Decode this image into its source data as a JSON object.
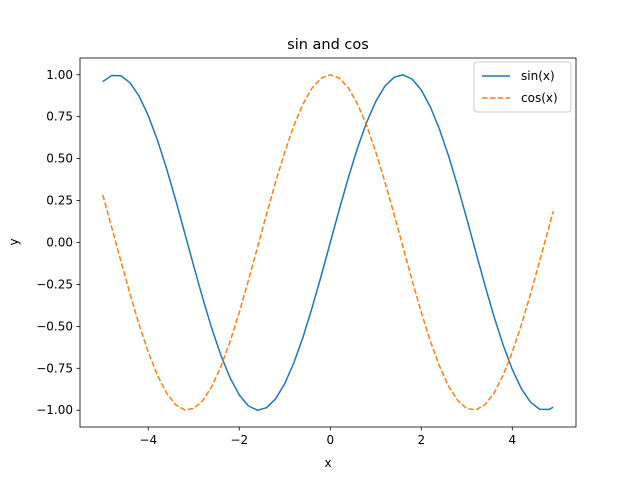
{
  "chart_data": {
    "type": "line",
    "title": "sin and cos",
    "xlabel": "x",
    "ylabel": "y",
    "xlim": [
      -5.5,
      5.4
    ],
    "ylim": [
      -1.1,
      1.1
    ],
    "x_ticks": [
      -4,
      -2,
      0,
      2,
      4
    ],
    "x_tick_labels": [
      "−4",
      "−2",
      "0",
      "2",
      "4"
    ],
    "y_ticks": [
      -1.0,
      -0.75,
      -0.5,
      -0.25,
      0.0,
      0.25,
      0.5,
      0.75,
      1.0
    ],
    "y_tick_labels": [
      "−1.00",
      "−0.75",
      "−0.50",
      "−0.25",
      "0.00",
      "0.25",
      "0.50",
      "0.75",
      "1.00"
    ],
    "grid": false,
    "legend_position": "top-right",
    "x": [
      -5.0,
      -4.8,
      -4.6,
      -4.4,
      -4.2,
      -4.0,
      -3.8,
      -3.6,
      -3.4,
      -3.2,
      -3.0,
      -2.8,
      -2.6,
      -2.4,
      -2.2,
      -2.0,
      -1.8,
      -1.6,
      -1.4,
      -1.2,
      -1.0,
      -0.8,
      -0.6,
      -0.4,
      -0.2,
      0.0,
      0.2,
      0.4,
      0.6,
      0.8,
      1.0,
      1.2,
      1.4,
      1.6,
      1.8,
      2.0,
      2.2,
      2.4,
      2.6,
      2.8,
      3.0,
      3.2,
      3.4,
      3.6,
      3.8,
      4.0,
      4.2,
      4.4,
      4.6,
      4.8,
      4.9
    ],
    "series": [
      {
        "name": "sin(x)",
        "color": "#1f77b4",
        "style": "solid",
        "values": [
          0.959,
          0.996,
          0.994,
          0.952,
          0.872,
          0.757,
          0.612,
          0.443,
          0.256,
          0.058,
          -0.141,
          -0.335,
          -0.516,
          -0.675,
          -0.808,
          -0.909,
          -0.974,
          -1.0,
          -0.985,
          -0.932,
          -0.841,
          -0.717,
          -0.565,
          -0.389,
          -0.199,
          0.0,
          0.199,
          0.389,
          0.565,
          0.717,
          0.841,
          0.932,
          0.985,
          1.0,
          0.974,
          0.909,
          0.808,
          0.675,
          0.516,
          0.335,
          0.141,
          -0.058,
          -0.256,
          -0.443,
          -0.612,
          -0.757,
          -0.872,
          -0.952,
          -0.994,
          -0.996,
          -0.982
        ]
      },
      {
        "name": "cos(x)",
        "color": "#ff7f0e",
        "style": "dashed",
        "values": [
          0.284,
          0.087,
          -0.112,
          -0.307,
          -0.49,
          -0.654,
          -0.791,
          -0.897,
          -0.967,
          -0.998,
          -0.99,
          -0.942,
          -0.857,
          -0.737,
          -0.589,
          -0.416,
          -0.227,
          -0.029,
          0.17,
          0.362,
          0.54,
          0.697,
          0.825,
          0.921,
          0.98,
          1.0,
          0.98,
          0.921,
          0.825,
          0.697,
          0.54,
          0.362,
          0.17,
          -0.029,
          -0.227,
          -0.416,
          -0.589,
          -0.737,
          -0.857,
          -0.942,
          -0.99,
          -0.998,
          -0.967,
          -0.897,
          -0.791,
          -0.654,
          -0.49,
          -0.307,
          -0.112,
          0.087,
          0.187
        ]
      }
    ]
  }
}
